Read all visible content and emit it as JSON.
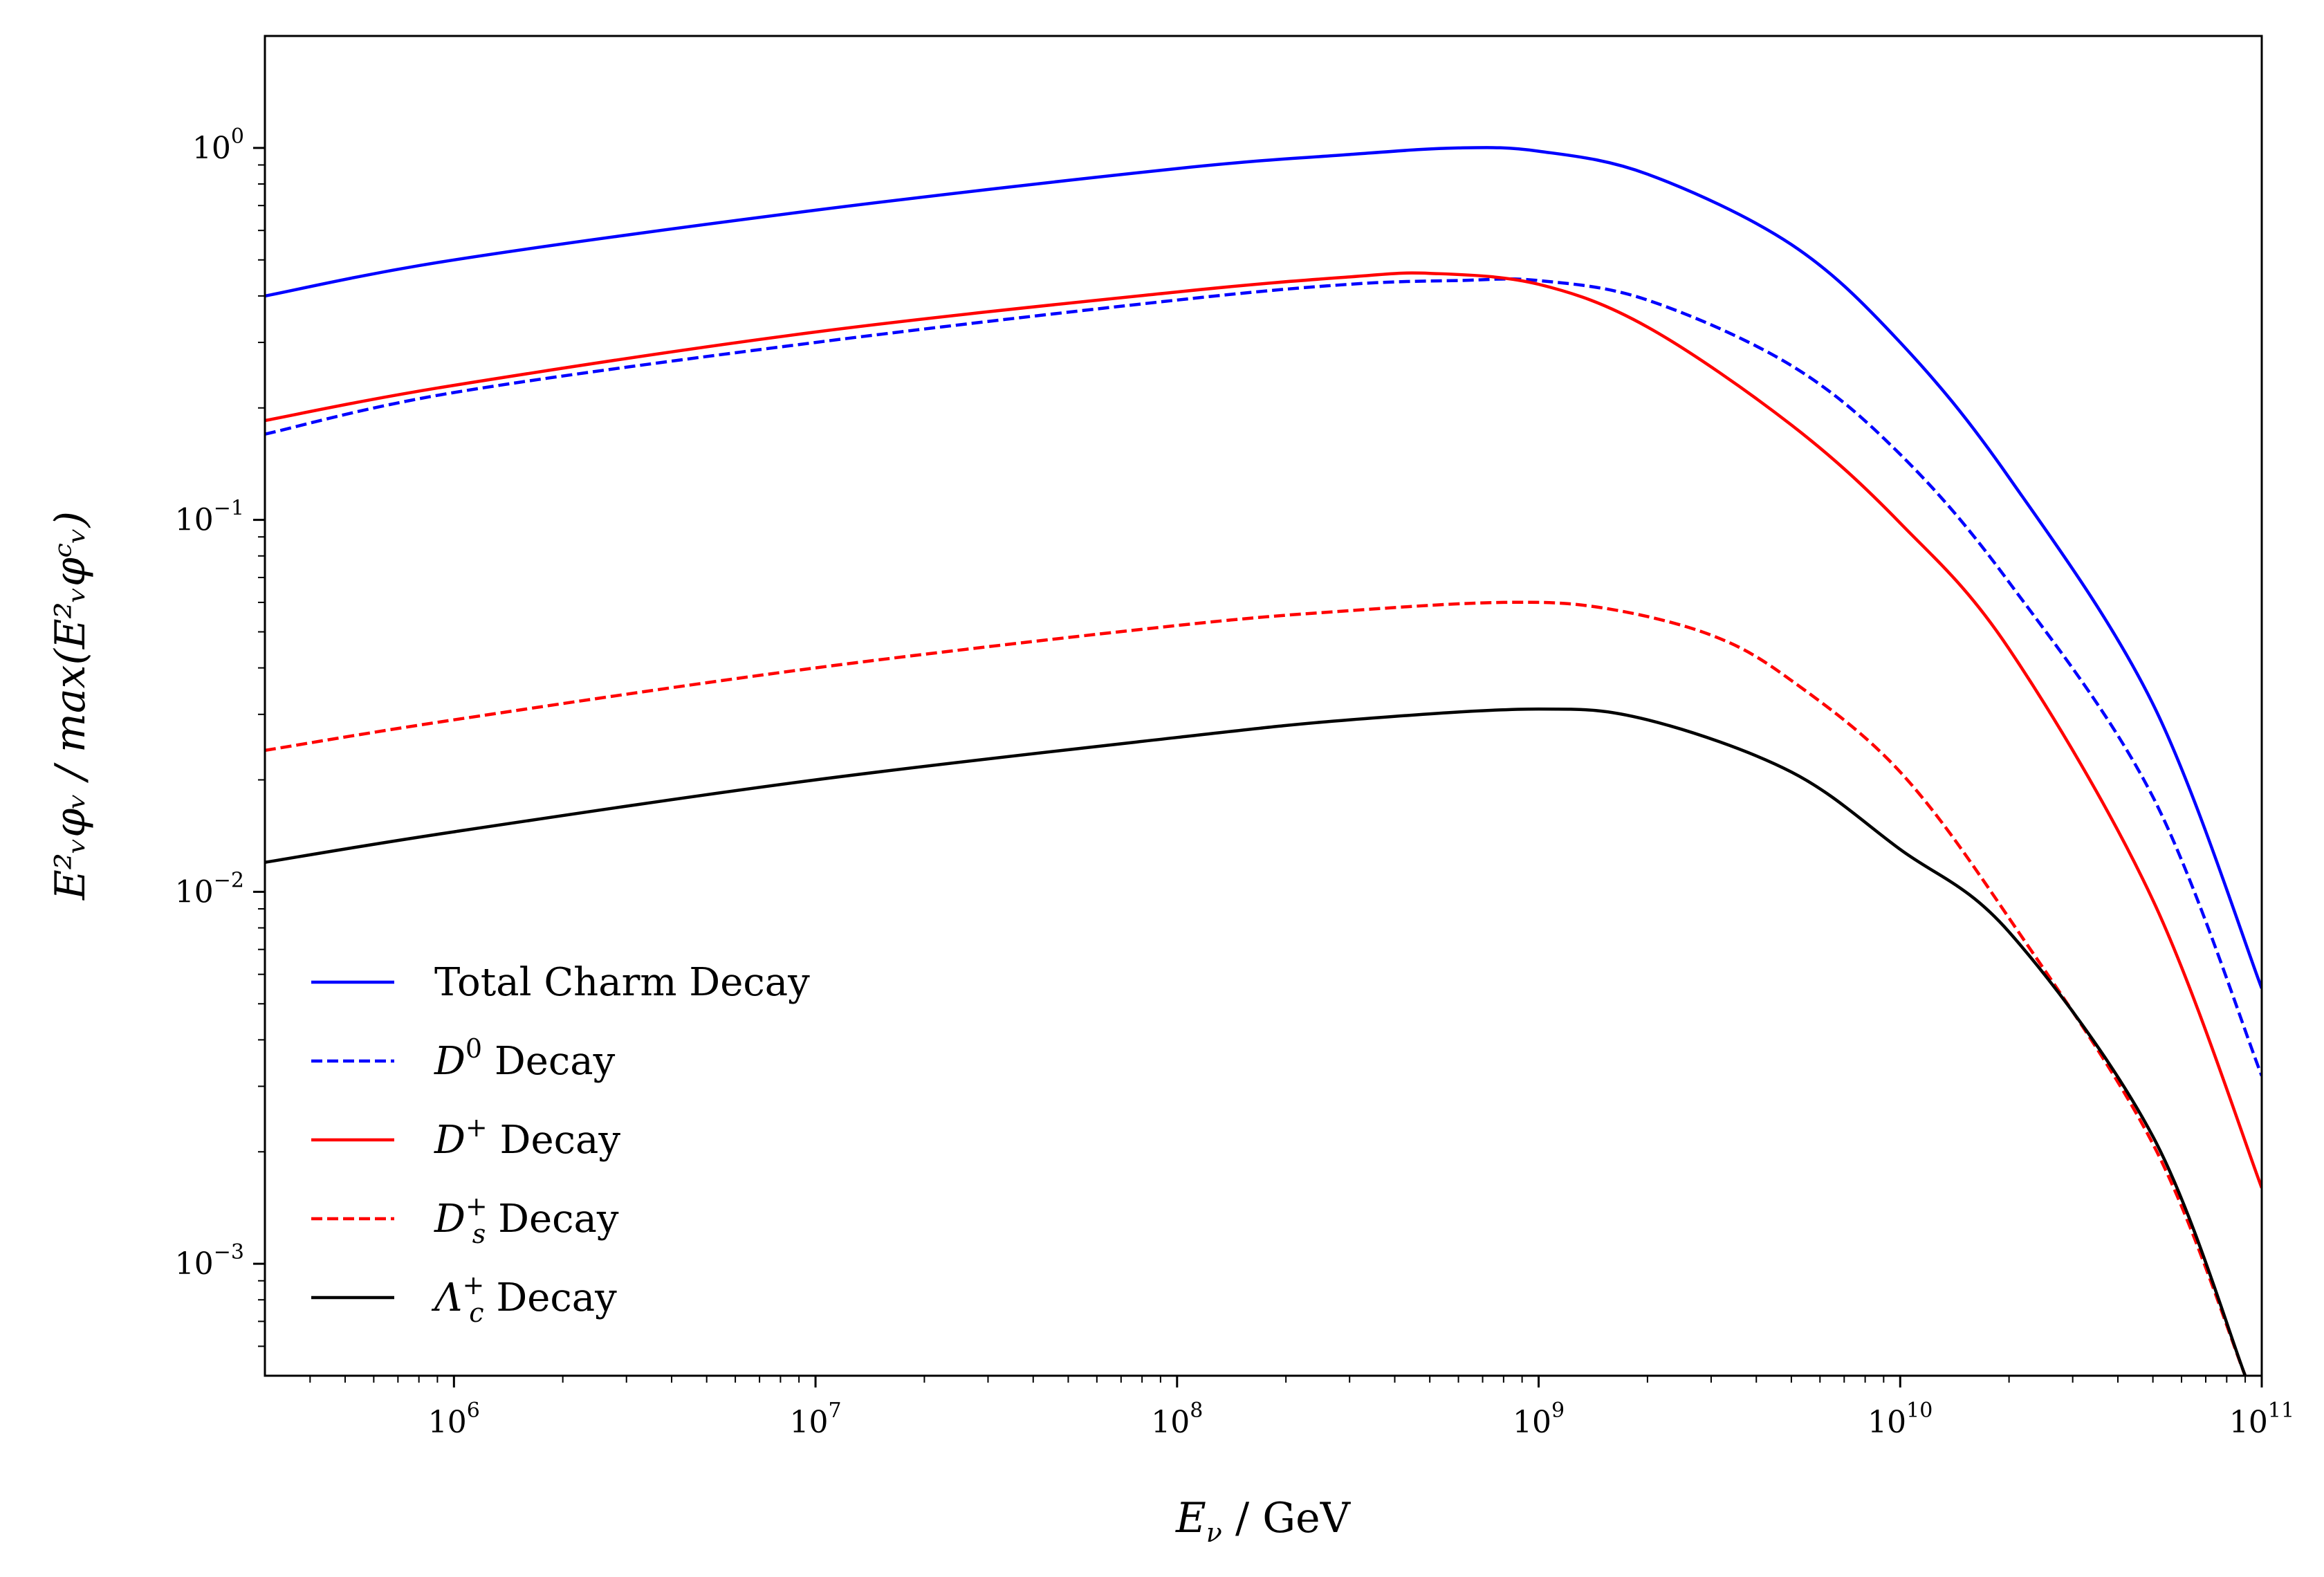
{
  "chart_data": {
    "type": "line",
    "title": "",
    "xscale": "log",
    "yscale": "log",
    "xlim": [
      300000,
      100000000000
    ],
    "ylim": [
      0.0005,
      2.0
    ],
    "xlabel": {
      "main": "E",
      "sub": "ν",
      "suffix": " / GeV"
    },
    "ylabel": {
      "text": "E²ᵥφᵥ / max(E²ᵥφᶜᵥ)"
    },
    "x_ticks": [
      {
        "base": "10",
        "exp": "6",
        "value": 1000000
      },
      {
        "base": "10",
        "exp": "7",
        "value": 10000000
      },
      {
        "base": "10",
        "exp": "8",
        "value": 100000000
      },
      {
        "base": "10",
        "exp": "9",
        "value": 1000000000
      },
      {
        "base": "10",
        "exp": "10",
        "value": 10000000000
      },
      {
        "base": "10",
        "exp": "11",
        "value": 100000000000
      }
    ],
    "y_ticks": [
      {
        "base": "10",
        "exp": "0",
        "value": 1.0
      },
      {
        "base": "10",
        "exp": "−1",
        "value": 0.1
      },
      {
        "base": "10",
        "exp": "−2",
        "value": 0.01
      },
      {
        "base": "10",
        "exp": "−3",
        "value": 0.001
      }
    ],
    "grid": false,
    "legend_position": "lower-left",
    "series": [
      {
        "name": "Total Charm Decay",
        "legend": {
          "main": "Total Charm Decay",
          "sup": "",
          "sub": "",
          "rest": ""
        },
        "color": "#0000ff",
        "dash": "solid",
        "x": [
          300000,
          1000000,
          10000000,
          100000000,
          300000000,
          600000000,
          1000000000,
          2000000000,
          5000000000,
          10000000000,
          20000000000,
          50000000000,
          100000000000
        ],
        "y": [
          0.4,
          0.5,
          0.68,
          0.88,
          0.96,
          1.0,
          0.98,
          0.85,
          0.55,
          0.3,
          0.13,
          0.032,
          0.0055
        ]
      },
      {
        "name": "D0 Decay",
        "legend": {
          "main": "D",
          "sup": "0",
          "sub": "",
          "rest": " Decay"
        },
        "color": "#0000ff",
        "dash": "dashed",
        "x": [
          300000,
          1000000,
          10000000,
          100000000,
          300000000,
          600000000,
          1000000000,
          2000000000,
          5000000000,
          10000000000,
          20000000000,
          50000000000,
          100000000000
        ],
        "y": [
          0.17,
          0.22,
          0.3,
          0.39,
          0.43,
          0.44,
          0.44,
          0.39,
          0.26,
          0.15,
          0.068,
          0.018,
          0.0032
        ]
      },
      {
        "name": "D+ Decay",
        "legend": {
          "main": "D",
          "sup": "+",
          "sub": "",
          "rest": " Decay"
        },
        "color": "#ff0000",
        "dash": "solid",
        "x": [
          300000,
          1000000,
          10000000,
          100000000,
          300000000,
          500000000,
          1000000000,
          2000000000,
          5000000000,
          10000000000,
          20000000000,
          50000000000,
          100000000000
        ],
        "y": [
          0.185,
          0.23,
          0.32,
          0.41,
          0.45,
          0.46,
          0.43,
          0.33,
          0.18,
          0.098,
          0.045,
          0.0095,
          0.0016
        ]
      },
      {
        "name": "Ds+ Decay",
        "legend": {
          "main": "D",
          "sup": "+",
          "sub": "s",
          "rest": " Decay"
        },
        "color": "#ff0000",
        "dash": "dashed",
        "x": [
          300000,
          1000000,
          10000000,
          100000000,
          300000000,
          800000000,
          1500000000,
          3000000000,
          5000000000,
          10000000000,
          20000000000,
          50000000000,
          90000000000
        ],
        "y": [
          0.024,
          0.029,
          0.04,
          0.052,
          0.057,
          0.06,
          0.058,
          0.049,
          0.037,
          0.021,
          0.0085,
          0.0021,
          0.0005
        ]
      },
      {
        "name": "Λc+ Decay",
        "legend": {
          "main": "Λ",
          "sup": "+",
          "sub": "c",
          "rest": " Decay"
        },
        "color": "#000000",
        "dash": "solid",
        "x": [
          300000,
          1000000,
          10000000,
          100000000,
          300000000,
          1000000000,
          2000000000,
          5000000000,
          10000000000,
          20000000000,
          50000000000,
          90000000000
        ],
        "y": [
          0.012,
          0.0145,
          0.02,
          0.026,
          0.029,
          0.031,
          0.029,
          0.021,
          0.013,
          0.0078,
          0.0022,
          0.0005
        ]
      }
    ]
  }
}
